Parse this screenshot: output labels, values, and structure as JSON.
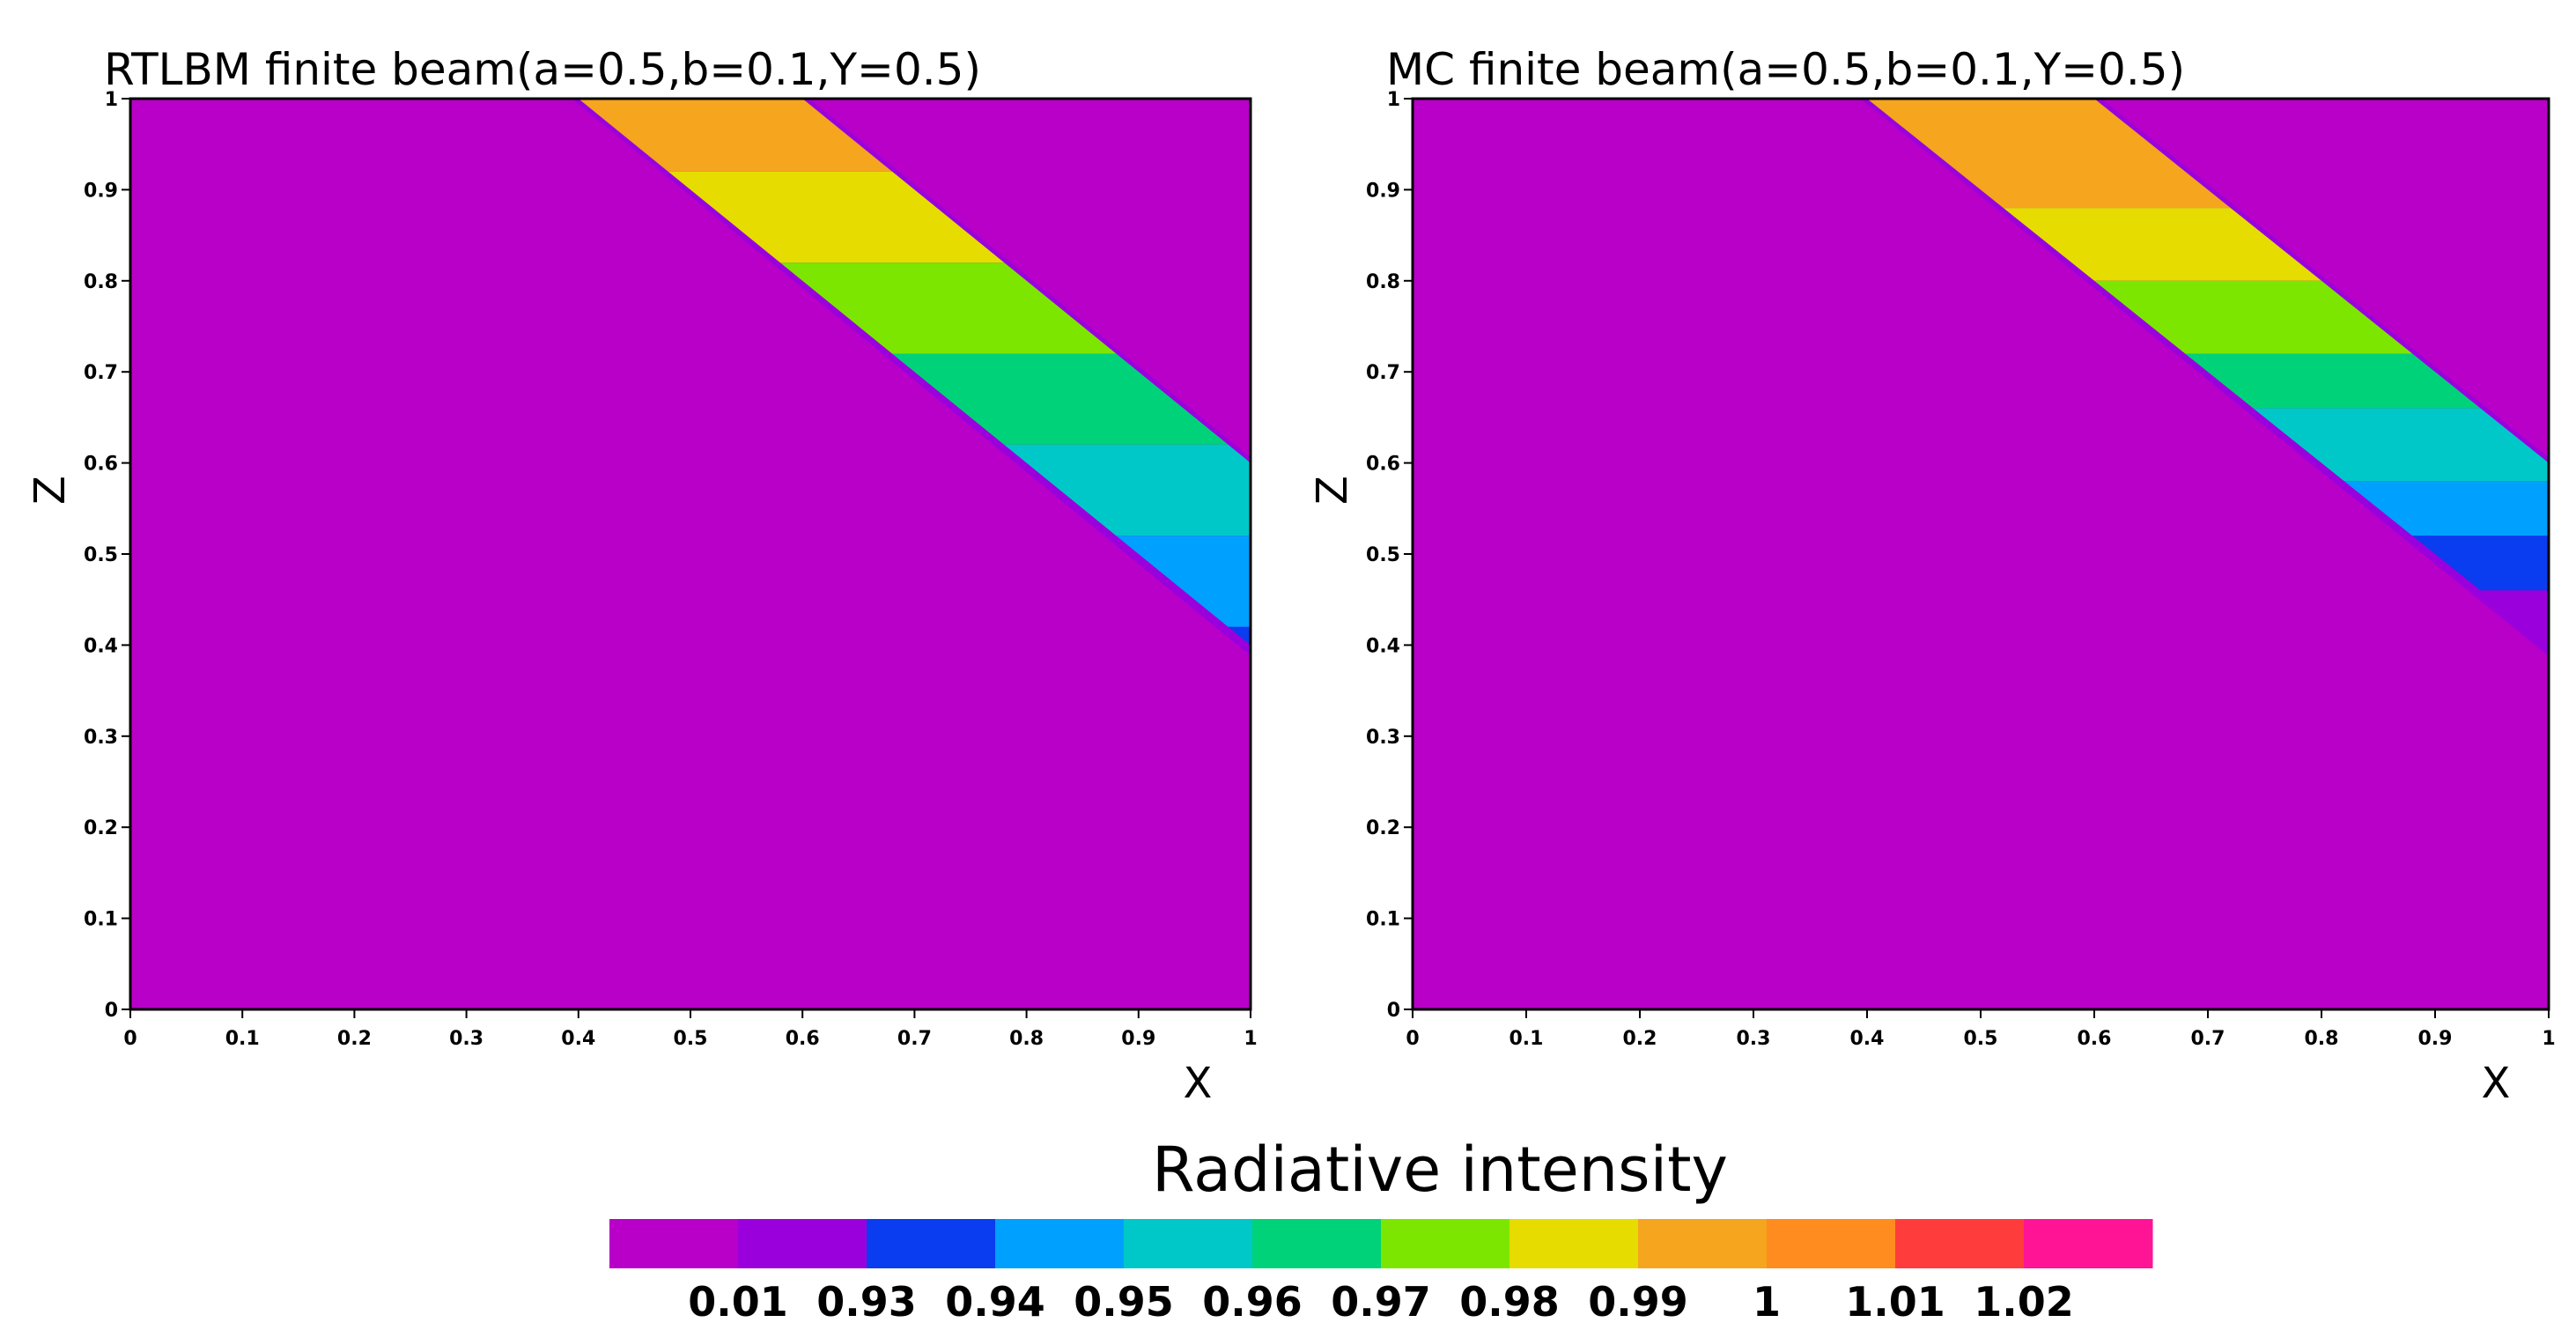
{
  "chart_data": [
    {
      "type": "heatmap",
      "title": "RTLBM finite beam(a=0.5,b=0.1,Y=0.5)",
      "xlabel": "X",
      "ylabel": "Z",
      "xlim": [
        0,
        1
      ],
      "ylim": [
        0,
        1
      ],
      "xticks": [
        "0",
        "0.1",
        "0.2",
        "0.3",
        "0.4",
        "0.5",
        "0.6",
        "0.7",
        "0.8",
        "0.9",
        "1"
      ],
      "yticks": [
        "0",
        "0.1",
        "0.2",
        "0.3",
        "0.4",
        "0.5",
        "0.6",
        "0.7",
        "0.8",
        "0.9",
        "1"
      ],
      "background_level": "0.01",
      "beam": {
        "lower_edge": [
          [
            0.4,
            1.0
          ],
          [
            1.0,
            0.4
          ]
        ],
        "upper_edge": [
          [
            0.6,
            1.0
          ],
          [
            1.0,
            0.6
          ]
        ],
        "bands": [
          {
            "level": "1",
            "z": [
              0.92,
              1.0
            ]
          },
          {
            "level": "0.99",
            "z": [
              0.82,
              0.92
            ]
          },
          {
            "level": "0.98",
            "z": [
              0.72,
              0.82
            ]
          },
          {
            "level": "0.97",
            "z": [
              0.62,
              0.72
            ]
          },
          {
            "level": "0.96",
            "z": [
              0.52,
              0.62
            ]
          },
          {
            "level": "0.95",
            "z": [
              0.42,
              0.52
            ]
          },
          {
            "level": "0.94",
            "z": [
              0.4,
              0.42
            ]
          }
        ]
      }
    },
    {
      "type": "heatmap",
      "title": "MC finite beam(a=0.5,b=0.1,Y=0.5)",
      "xlabel": "X",
      "ylabel": "Z",
      "xlim": [
        0,
        1
      ],
      "ylim": [
        0,
        1
      ],
      "xticks": [
        "0",
        "0.1",
        "0.2",
        "0.3",
        "0.4",
        "0.5",
        "0.6",
        "0.7",
        "0.8",
        "0.9",
        "1"
      ],
      "yticks": [
        "0",
        "0.1",
        "0.2",
        "0.3",
        "0.4",
        "0.5",
        "0.6",
        "0.7",
        "0.8",
        "0.9",
        "1"
      ],
      "background_level": "0.01",
      "beam": {
        "lower_edge": [
          [
            0.4,
            1.0
          ],
          [
            1.0,
            0.4
          ]
        ],
        "upper_edge": [
          [
            0.6,
            1.0
          ],
          [
            1.0,
            0.6
          ]
        ],
        "bands": [
          {
            "level": "1",
            "z": [
              0.88,
              1.0
            ]
          },
          {
            "level": "0.99",
            "z": [
              0.8,
              0.88
            ]
          },
          {
            "level": "0.98",
            "z": [
              0.72,
              0.8
            ]
          },
          {
            "level": "0.97",
            "z": [
              0.66,
              0.72
            ]
          },
          {
            "level": "0.96",
            "z": [
              0.58,
              0.66
            ]
          },
          {
            "level": "0.95",
            "z": [
              0.52,
              0.58
            ]
          },
          {
            "level": "0.94",
            "z": [
              0.46,
              0.52
            ]
          },
          {
            "level": "0.93",
            "z": [
              0.4,
              0.46
            ]
          }
        ]
      }
    }
  ],
  "colorbar": {
    "title": "Radiative intensity",
    "swatches": [
      "#b900c8",
      "#9a00dc",
      "#0a3cf0",
      "#00a0ff",
      "#00c8c8",
      "#00d27a",
      "#7de600",
      "#e6dc00",
      "#f5a51e",
      "#ff8c1e",
      "#ff3c3c",
      "#ff1496"
    ],
    "labels": [
      "0.01",
      "0.93",
      "0.94",
      "0.95",
      "0.96",
      "0.97",
      "0.98",
      "0.99",
      "1",
      "1.01",
      "1.02"
    ]
  },
  "level_colors": {
    "0.01": "#b900c8",
    "0.93": "#9a00dc",
    "0.94": "#0a3cf0",
    "0.95": "#00a0ff",
    "0.96": "#00c8c8",
    "0.97": "#00d27a",
    "0.98": "#7de600",
    "0.99": "#e6dc00",
    "1": "#f5a51e",
    "1.01": "#ff8c1e",
    "1.02": "#ff3c3c"
  },
  "edge_color": "#9a00dc"
}
